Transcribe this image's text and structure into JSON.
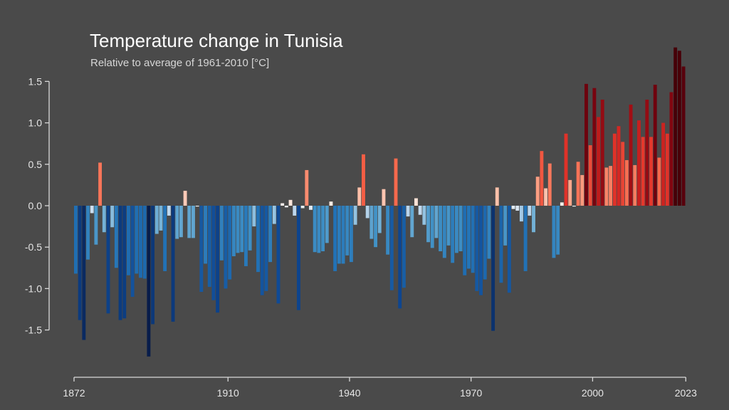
{
  "chart_data": {
    "type": "bar",
    "title": "Temperature change in Tunisia",
    "subtitle": "Relative to average of 1961-2010  [°C]",
    "xlabel": "",
    "ylabel": "",
    "x_start": 1872,
    "x_end": 2023,
    "xlim": [
      1872,
      2024
    ],
    "ylim": [
      -1.83,
      1.95
    ],
    "yticks": [
      -1.5,
      -1.0,
      -0.5,
      0.0,
      0.5,
      1.0,
      1.5
    ],
    "ytick_labels": [
      "-1.5",
      "-1.0",
      "-0.5",
      "0.0",
      "0.5",
      "1.0",
      "1.5"
    ],
    "xticks": [
      1872,
      1910,
      1940,
      1970,
      2000,
      2023
    ],
    "xtick_labels": [
      "1872",
      "1910",
      "1940",
      "1970",
      "2000",
      "2023"
    ],
    "grid": false,
    "legend": "none",
    "colors": {
      "background": "#4a4a4a",
      "axis": "#d9d9d9",
      "text": "#e6e6e6"
    },
    "values": [
      -0.82,
      -1.38,
      -1.62,
      -0.65,
      -0.09,
      -0.47,
      0.52,
      -0.32,
      -1.3,
      -0.26,
      -0.75,
      -1.38,
      -1.36,
      -0.84,
      -1.1,
      -0.82,
      -0.87,
      -0.88,
      -1.82,
      -1.43,
      -0.34,
      -0.3,
      -0.79,
      -0.12,
      -1.4,
      -0.4,
      -0.38,
      0.18,
      -0.39,
      -0.39,
      -0.01,
      -1.04,
      -0.7,
      -0.98,
      -1.14,
      -1.29,
      -0.66,
      -1.0,
      -0.89,
      -0.61,
      -0.57,
      -0.56,
      -0.73,
      -0.54,
      -0.25,
      -0.8,
      -1.08,
      -1.03,
      -0.68,
      -0.22,
      -1.18,
      0.03,
      -0.02,
      0.07,
      -0.12,
      -1.26,
      -0.03,
      0.43,
      -0.05,
      -0.56,
      -0.57,
      -0.55,
      -0.45,
      0.05,
      -0.79,
      -0.7,
      -0.7,
      -0.6,
      -0.68,
      -0.23,
      0.22,
      0.62,
      -0.15,
      -0.4,
      -0.5,
      -0.33,
      0.2,
      -0.59,
      -1.02,
      0.57,
      -1.24,
      -0.99,
      -0.13,
      -0.38,
      0.09,
      -0.11,
      -0.23,
      -0.44,
      -0.51,
      -0.39,
      -0.55,
      -0.63,
      -0.48,
      -0.69,
      -0.57,
      -0.55,
      -0.84,
      -0.76,
      -0.81,
      -1.03,
      -1.08,
      -0.89,
      -0.64,
      -1.51,
      0.22,
      -0.93,
      -0.48,
      -1.05,
      -0.04,
      -0.06,
      -0.19,
      -0.79,
      -0.12,
      -0.32,
      0.35,
      0.66,
      0.21,
      0.51,
      -0.63,
      -0.59,
      0.04,
      0.87,
      0.31,
      -0.01,
      0.53,
      0.37,
      1.47,
      0.73,
      1.42,
      1.07,
      1.28,
      0.46,
      0.48,
      0.87,
      0.96,
      0.77,
      0.55,
      1.22,
      0.49,
      1.03,
      0.83,
      1.28,
      0.83,
      1.46,
      0.58,
      1.0,
      0.87,
      1.37,
      1.91,
      1.87,
      1.68
    ]
  }
}
